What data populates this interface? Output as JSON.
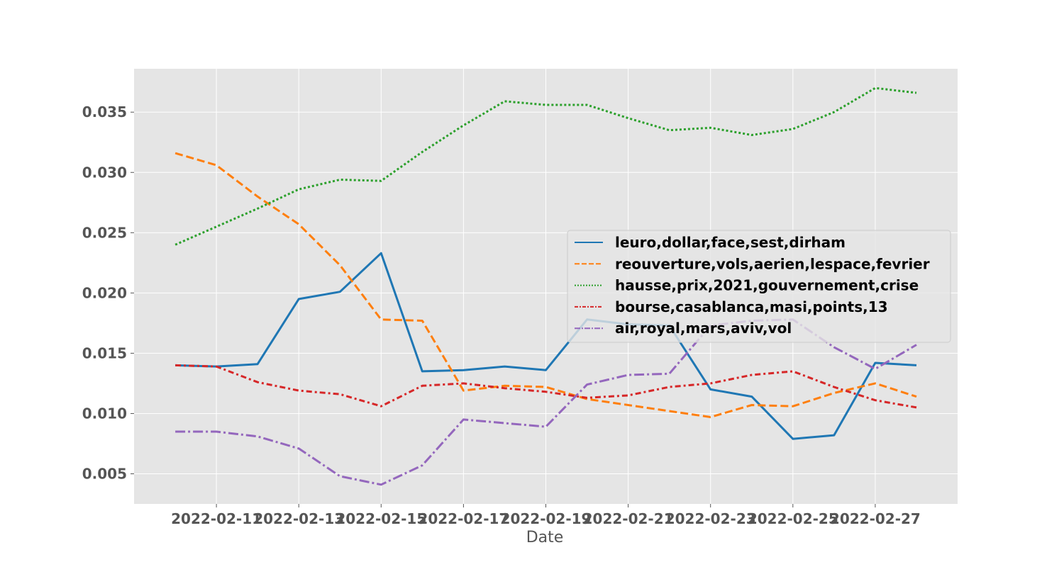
{
  "chart_data": {
    "type": "line",
    "title": "",
    "xlabel": "Date",
    "ylabel": "",
    "x": [
      "2022-02-10",
      "2022-02-11",
      "2022-02-12",
      "2022-02-13",
      "2022-02-14",
      "2022-02-15",
      "2022-02-16",
      "2022-02-17",
      "2022-02-18",
      "2022-02-19",
      "2022-02-20",
      "2022-02-21",
      "2022-02-22",
      "2022-02-23",
      "2022-02-24",
      "2022-02-25",
      "2022-02-26",
      "2022-02-27",
      "2022-02-28"
    ],
    "x_ticks": [
      "2022-02-11",
      "2022-02-13",
      "2022-02-15",
      "2022-02-17",
      "2022-02-19",
      "2022-02-21",
      "2022-02-23",
      "2022-02-25",
      "2022-02-27"
    ],
    "y_ticks": [
      "0.005",
      "0.010",
      "0.015",
      "0.020",
      "0.025",
      "0.030",
      "0.035"
    ],
    "ylim": [
      0.0025,
      0.0386
    ],
    "xlim": [
      "2022-02-09",
      "2022-02-29"
    ],
    "grid": true,
    "legend_position": "center-right",
    "series": [
      {
        "name": "leuro,dollar,face,sest,dirham",
        "color": "#1f77b4",
        "dash": "solid",
        "values": [
          0.014,
          0.0139,
          0.0141,
          0.0195,
          0.0201,
          0.0233,
          0.0135,
          0.0136,
          0.0139,
          0.0136,
          0.0178,
          0.0174,
          0.0173,
          0.012,
          0.0114,
          0.0079,
          0.0082,
          0.0142,
          0.014
        ]
      },
      {
        "name": "reouverture,vols,aerien,lespace,fevrier",
        "color": "#ff7f0e",
        "dash": "dashed",
        "values": [
          0.0316,
          0.0306,
          0.028,
          0.0257,
          0.0223,
          0.0178,
          0.0177,
          0.0119,
          0.0123,
          0.0122,
          0.0112,
          0.0107,
          0.0102,
          0.0097,
          0.0107,
          0.0106,
          0.0117,
          0.0125,
          0.0114
        ]
      },
      {
        "name": "hausse,prix,2021,gouvernement,crise",
        "color": "#2ca02c",
        "dash": "dotted",
        "values": [
          0.024,
          0.0255,
          0.027,
          0.0286,
          0.0294,
          0.0293,
          0.0317,
          0.0339,
          0.0359,
          0.0356,
          0.0356,
          0.0345,
          0.0335,
          0.0337,
          0.0331,
          0.0336,
          0.035,
          0.037,
          0.0366
        ]
      },
      {
        "name": "bourse,casablanca,masi,points,13",
        "color": "#d62728",
        "dash": "dashdot2",
        "values": [
          0.014,
          0.0139,
          0.0126,
          0.0119,
          0.0116,
          0.0106,
          0.0123,
          0.0125,
          0.0121,
          0.0118,
          0.0113,
          0.0115,
          0.0122,
          0.0125,
          0.0132,
          0.0135,
          0.0122,
          0.0111,
          0.0105
        ]
      },
      {
        "name": "air,royal,mars,aviv,vol",
        "color": "#9467bd",
        "dash": "dashdot",
        "values": [
          0.0085,
          0.0085,
          0.0081,
          0.0071,
          0.0048,
          0.0041,
          0.0057,
          0.0095,
          0.0092,
          0.0089,
          0.0124,
          0.0132,
          0.0133,
          0.0173,
          0.0177,
          0.0178,
          0.0155,
          0.0137,
          0.0157
        ]
      }
    ]
  }
}
